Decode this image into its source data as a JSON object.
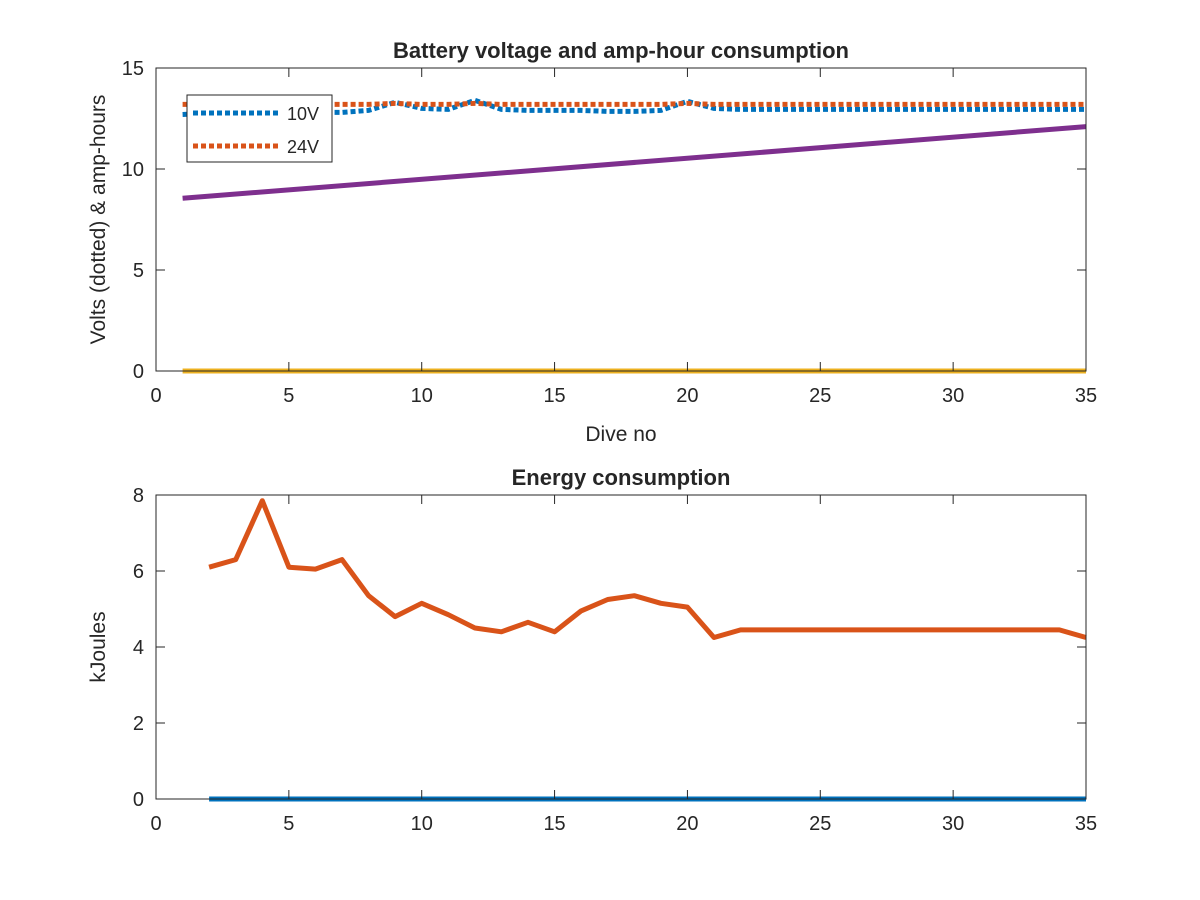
{
  "chart_data": [
    {
      "type": "line",
      "title": "Battery voltage and amp-hour consumption",
      "xlabel": "Dive no",
      "ylabel": "Volts (dotted) & amp-hours",
      "xlim": [
        0,
        35
      ],
      "ylim": [
        0,
        15
      ],
      "xticks": [
        "0",
        "5",
        "10",
        "15",
        "20",
        "25",
        "30",
        "35"
      ],
      "yticks": [
        "0",
        "5",
        "10",
        "15"
      ],
      "grid": false,
      "legend": {
        "placement": "top-left",
        "entries": [
          "10V",
          "24V"
        ]
      },
      "series": [
        {
          "name": "10V",
          "style": "dotted",
          "color": "#0072BD",
          "x": [
            1,
            2,
            3,
            4,
            5,
            6,
            7,
            8,
            9,
            10,
            11,
            12,
            13,
            14,
            15,
            16,
            17,
            18,
            19,
            20,
            21,
            22,
            23,
            24,
            25,
            26,
            27,
            28,
            29,
            30,
            31,
            32,
            33,
            34,
            35
          ],
          "y": [
            12.7,
            12.75,
            12.75,
            12.8,
            12.8,
            12.8,
            12.8,
            12.9,
            13.3,
            13.0,
            12.95,
            13.4,
            12.95,
            12.9,
            12.9,
            12.9,
            12.85,
            12.85,
            12.9,
            13.35,
            13.0,
            12.95,
            12.95,
            12.95,
            12.95,
            12.95,
            12.95,
            12.95,
            12.95,
            12.95,
            12.95,
            12.95,
            12.95,
            12.95,
            12.95
          ]
        },
        {
          "name": "24V",
          "style": "dotted",
          "color": "#D95319",
          "x": [
            1,
            2,
            3,
            4,
            5,
            6,
            7,
            8,
            9,
            10,
            11,
            12,
            13,
            14,
            15,
            16,
            17,
            18,
            19,
            20,
            21,
            22,
            23,
            24,
            25,
            26,
            27,
            28,
            29,
            30,
            31,
            32,
            33,
            34,
            35
          ],
          "y": [
            13.2,
            13.2,
            13.2,
            13.2,
            13.2,
            13.2,
            13.2,
            13.2,
            13.25,
            13.2,
            13.2,
            13.25,
            13.2,
            13.2,
            13.2,
            13.2,
            13.2,
            13.2,
            13.2,
            13.25,
            13.2,
            13.2,
            13.2,
            13.2,
            13.2,
            13.2,
            13.2,
            13.2,
            13.2,
            13.2,
            13.2,
            13.2,
            13.2,
            13.2,
            13.2
          ]
        },
        {
          "style": "solid",
          "color": "#EDB120",
          "x": [
            1,
            35
          ],
          "y": [
            0,
            0
          ]
        },
        {
          "style": "solid",
          "color": "#7E2F8E",
          "x": [
            1,
            35
          ],
          "y": [
            8.55,
            12.1
          ]
        }
      ]
    },
    {
      "type": "line",
      "title": "Energy consumption",
      "xlabel": "",
      "ylabel": "kJoules",
      "xlim": [
        0,
        35
      ],
      "ylim": [
        0,
        8
      ],
      "xticks": [
        "0",
        "5",
        "10",
        "15",
        "20",
        "25",
        "30",
        "35"
      ],
      "yticks": [
        "0",
        "2",
        "4",
        "6",
        "8"
      ],
      "grid": false,
      "series": [
        {
          "style": "solid",
          "color": "#0072BD",
          "x": [
            2,
            35
          ],
          "y": [
            0,
            0
          ]
        },
        {
          "style": "solid",
          "color": "#D95319",
          "x": [
            2,
            3,
            4,
            5,
            6,
            7,
            8,
            9,
            10,
            11,
            12,
            13,
            14,
            15,
            16,
            17,
            18,
            19,
            20,
            21,
            22,
            23,
            24,
            25,
            26,
            27,
            28,
            29,
            30,
            31,
            32,
            33,
            34,
            35
          ],
          "y": [
            6.1,
            6.3,
            7.85,
            6.1,
            6.05,
            6.3,
            5.35,
            4.8,
            5.15,
            4.85,
            4.5,
            4.4,
            4.65,
            4.4,
            4.95,
            5.25,
            5.35,
            5.15,
            5.05,
            4.25,
            4.45,
            4.45,
            4.45,
            4.45,
            4.45,
            4.45,
            4.45,
            4.45,
            4.45,
            4.45,
            4.45,
            4.45,
            4.45,
            4.25
          ]
        }
      ]
    }
  ]
}
